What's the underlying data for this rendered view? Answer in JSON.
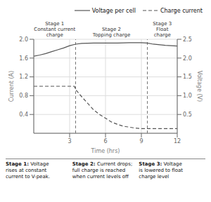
{
  "chart_data": {
    "type": "line",
    "xlabel": "Time (hrs)",
    "ylabel": "Current (A)",
    "y2label": "Voltage (V)",
    "xlim": [
      0,
      12
    ],
    "xticks": [
      3,
      6,
      9,
      12
    ],
    "ylim": [
      0.0,
      2.0
    ],
    "yticks": [
      0.4,
      0.8,
      1.2,
      1.6,
      {
        "value": 2.0,
        "label": "2.0"
      }
    ],
    "y2lim": [
      0.0,
      2.5
    ],
    "y2ticks": [
      0.5,
      {
        "value": 1.0,
        "label": "1.0"
      },
      1.5,
      {
        "value": 2.0,
        "label": "2.0"
      },
      2.5
    ],
    "grid": true,
    "legend": "upper right",
    "series": [
      {
        "name": "Voltage per cell",
        "axis": "y2",
        "color": "#555555",
        "line_style": "solid",
        "x": [
          0,
          0.5,
          1,
          1.5,
          2,
          2.5,
          3,
          3.5,
          4,
          5,
          6,
          7,
          8,
          9,
          9.5,
          10,
          11,
          12
        ],
        "values": [
          2.05,
          2.08,
          2.12,
          2.17,
          2.22,
          2.27,
          2.33,
          2.37,
          2.39,
          2.4,
          2.4,
          2.4,
          2.41,
          2.41,
          2.4,
          2.37,
          2.34,
          2.32
        ]
      },
      {
        "name": "Charge current",
        "color": "#555555",
        "line_style": "dashed",
        "x": [
          0,
          1,
          2,
          3,
          3.4,
          3.5,
          4,
          4.5,
          5,
          5.5,
          6,
          6.5,
          7,
          7.5,
          8,
          8.5,
          9,
          9.5,
          10,
          11,
          12
        ],
        "values": [
          1.0,
          1.0,
          1.0,
          1.0,
          1.0,
          0.93,
          0.78,
          0.64,
          0.5,
          0.4,
          0.32,
          0.24,
          0.19,
          0.15,
          0.13,
          0.11,
          0.1,
          0.1,
          0.1,
          0.1,
          0.1
        ]
      }
    ],
    "vlines": [
      3.5,
      9.5
    ],
    "annotations": [
      {
        "x": 1.75,
        "text": "Stage 1\nConstant current\ncharge"
      },
      {
        "x": 6.5,
        "text": "Stage 2\nTopping charge"
      },
      {
        "x": 10.75,
        "text": "Stage 3\nFloat\ncharge"
      }
    ],
    "captions": [
      {
        "bold": "Stage 1:",
        "text": " Voltage\nrises at constant\ncurrent to V-peak."
      },
      {
        "bold": "Stage 2:",
        "text": " Current drops;\nfull charge is reached\nwhen current levels off"
      },
      {
        "bold": "Stage 3:",
        "text": " Voltage\nis lowered to float\ncharge level"
      }
    ]
  }
}
